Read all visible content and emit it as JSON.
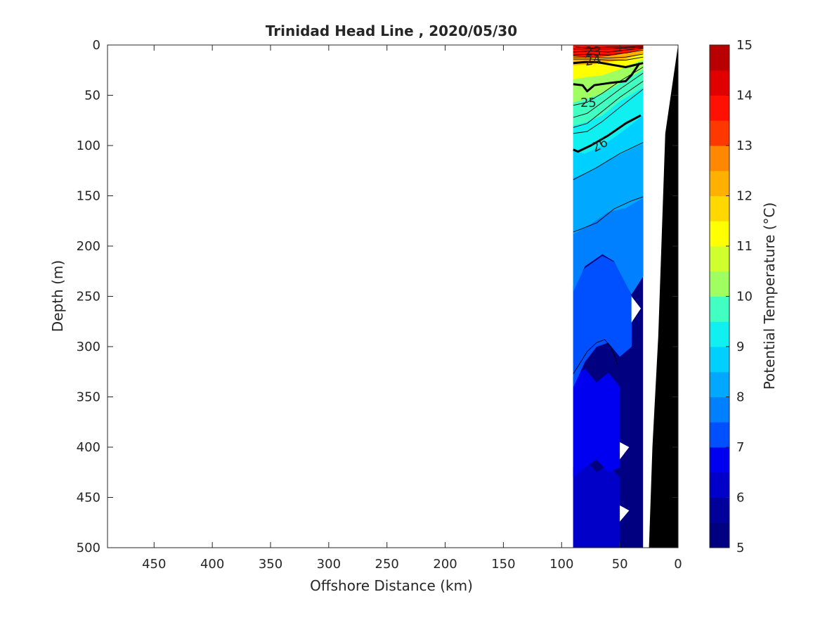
{
  "chart_data": {
    "type": "contour_section",
    "title": "Trinidad Head Line , 2020/05/30",
    "xlabel": "Offshore Distance (km)",
    "ylabel": "Depth (m)",
    "colorbar_label": "Potential Temperature (°C)",
    "xlim": [
      490,
      0
    ],
    "xdir": "reverse",
    "ylim": [
      500,
      0
    ],
    "ydir": "reverse",
    "xticks": [
      450,
      400,
      350,
      300,
      250,
      200,
      150,
      100,
      50,
      0
    ],
    "yticks": [
      0,
      50,
      100,
      150,
      200,
      250,
      300,
      350,
      400,
      450,
      500
    ],
    "colorbar_ticks": [
      5,
      6,
      7,
      8,
      9,
      10,
      11,
      12,
      13,
      14,
      15
    ],
    "colorbar_range": [
      5,
      15
    ],
    "colorbar_step": 0.5,
    "colormap": [
      "#000080",
      "#00009a",
      "#0000c8",
      "#0000f0",
      "#0020ff",
      "#0050ff",
      "#0080ff",
      "#00a8ff",
      "#00d0ff",
      "#10f0f0",
      "#40ffc0",
      "#70ff90",
      "#a0ff60",
      "#d0ff30",
      "#ffff00",
      "#ffd800",
      "#ffb000",
      "#ff8800",
      "#ff6000",
      "#ff3800",
      "#ff1000",
      "#e00000",
      "#b80000"
    ],
    "data_extent": {
      "x_min": 30,
      "x_max": 90,
      "depth_max": 500
    },
    "temperature_layers": [
      {
        "temp": 6.0,
        "outline": [
          [
            90,
            500
          ],
          [
            90,
            420
          ],
          [
            80,
            412
          ],
          [
            70,
            425
          ],
          [
            60,
            418
          ],
          [
            50,
            430
          ],
          [
            50,
            500
          ]
        ]
      },
      {
        "temp": 6.5,
        "outline": [
          [
            90,
            430
          ],
          [
            90,
            330
          ],
          [
            80,
            322
          ],
          [
            70,
            336
          ],
          [
            60,
            326
          ],
          [
            50,
            340
          ],
          [
            50,
            420
          ],
          [
            60,
            425
          ],
          [
            70,
            412
          ],
          [
            80,
            420
          ]
        ]
      },
      {
        "temp": 7.0,
        "outline": [
          [
            90,
            340
          ],
          [
            90,
            240
          ],
          [
            80,
            222
          ],
          [
            65,
            210
          ],
          [
            55,
            216
          ],
          [
            45,
            235
          ],
          [
            40,
            250
          ],
          [
            40,
            300
          ],
          [
            50,
            310
          ],
          [
            60,
            296
          ],
          [
            70,
            300
          ],
          [
            80,
            315
          ]
        ]
      },
      {
        "temp": 7.5,
        "outline": [
          [
            90,
            245
          ],
          [
            90,
            185
          ],
          [
            75,
            175
          ],
          [
            60,
            163
          ],
          [
            45,
            160
          ],
          [
            30,
            150
          ],
          [
            30,
            230
          ],
          [
            40,
            248
          ],
          [
            55,
            215
          ],
          [
            65,
            208
          ],
          [
            80,
            220
          ]
        ]
      },
      {
        "temp": 8.0,
        "outline": [
          [
            90,
            188
          ],
          [
            90,
            130
          ],
          [
            75,
            123
          ],
          [
            60,
            112
          ],
          [
            45,
            104
          ],
          [
            30,
            96
          ],
          [
            30,
            152
          ],
          [
            45,
            162
          ],
          [
            60,
            166
          ],
          [
            75,
            178
          ]
        ]
      },
      {
        "temp": 8.5,
        "outline": [
          [
            90,
            132
          ],
          [
            90,
            103
          ],
          [
            80,
            106
          ],
          [
            65,
            98
          ],
          [
            50,
            86
          ],
          [
            30,
            68
          ],
          [
            30,
            98
          ],
          [
            45,
            106
          ],
          [
            60,
            114
          ],
          [
            75,
            125
          ]
        ]
      },
      {
        "temp": 9.0,
        "outline": [
          [
            90,
            105
          ],
          [
            90,
            78
          ],
          [
            80,
            75
          ],
          [
            65,
            68
          ],
          [
            50,
            54
          ],
          [
            30,
            40
          ],
          [
            30,
            70
          ],
          [
            50,
            88
          ],
          [
            65,
            100
          ],
          [
            80,
            108
          ]
        ]
      },
      {
        "temp": 9.5,
        "outline": [
          [
            90,
            80
          ],
          [
            90,
            55
          ],
          [
            80,
            52
          ],
          [
            65,
            46
          ],
          [
            50,
            36
          ],
          [
            30,
            22
          ],
          [
            30,
            42
          ],
          [
            50,
            56
          ],
          [
            65,
            70
          ],
          [
            80,
            77
          ]
        ]
      },
      {
        "temp": 10.0,
        "outline": [
          [
            90,
            57
          ],
          [
            90,
            32
          ],
          [
            80,
            30
          ],
          [
            65,
            28
          ],
          [
            50,
            22
          ],
          [
            30,
            12
          ],
          [
            30,
            24
          ],
          [
            50,
            38
          ],
          [
            65,
            48
          ],
          [
            80,
            54
          ]
        ]
      },
      {
        "temp": 11.0,
        "outline": [
          [
            90,
            34
          ],
          [
            90,
            18
          ],
          [
            75,
            17
          ],
          [
            60,
            15
          ],
          [
            45,
            12
          ],
          [
            30,
            6
          ],
          [
            30,
            14
          ],
          [
            50,
            24
          ],
          [
            65,
            30
          ],
          [
            80,
            32
          ]
        ]
      },
      {
        "temp": 12.0,
        "outline": [
          [
            90,
            20
          ],
          [
            90,
            9
          ],
          [
            75,
            10
          ],
          [
            60,
            9
          ],
          [
            45,
            6
          ],
          [
            30,
            2
          ],
          [
            30,
            8
          ],
          [
            45,
            14
          ],
          [
            60,
            17
          ],
          [
            75,
            19
          ]
        ]
      },
      {
        "temp": 13.5,
        "outline": [
          [
            90,
            11
          ],
          [
            90,
            0
          ],
          [
            30,
            0
          ],
          [
            30,
            4
          ],
          [
            45,
            8
          ],
          [
            60,
            11
          ],
          [
            75,
            12
          ]
        ]
      }
    ],
    "white_notches": [
      {
        "outline": [
          [
            40,
            250
          ],
          [
            32,
            262
          ],
          [
            40,
            276
          ]
        ]
      },
      {
        "outline": [
          [
            50,
            395
          ],
          [
            42,
            400
          ],
          [
            50,
            412
          ]
        ]
      },
      {
        "outline": [
          [
            50,
            458
          ],
          [
            42,
            463
          ],
          [
            50,
            474
          ]
        ]
      }
    ],
    "density_contours": [
      {
        "label": "23",
        "points": [
          [
            88,
            2
          ],
          [
            75,
            3
          ],
          [
            60,
            2
          ],
          [
            45,
            2
          ],
          [
            30,
            1
          ]
        ],
        "bold": false
      },
      {
        "label": "24",
        "points": [
          [
            90,
            18
          ],
          [
            80,
            17
          ],
          [
            70,
            17
          ],
          [
            60,
            19
          ],
          [
            45,
            22
          ],
          [
            30,
            18
          ]
        ],
        "bold": true
      },
      {
        "label": "25",
        "points": [
          [
            90,
            39
          ],
          [
            82,
            40
          ],
          [
            78,
            46
          ],
          [
            72,
            40
          ],
          [
            60,
            38
          ],
          [
            45,
            36
          ],
          [
            40,
            30
          ],
          [
            33,
            18
          ]
        ],
        "bold": true
      },
      {
        "label": "26",
        "points": [
          [
            90,
            104
          ],
          [
            86,
            106
          ],
          [
            75,
            100
          ],
          [
            60,
            90
          ],
          [
            45,
            78
          ],
          [
            32,
            70
          ]
        ],
        "bold": true
      },
      {
        "label": "",
        "points": [
          [
            90,
            327
          ],
          [
            78,
            305
          ],
          [
            70,
            296
          ],
          [
            63,
            293
          ],
          [
            58,
            300
          ],
          [
            55,
            308
          ],
          [
            52,
            318
          ]
        ],
        "bold": false
      },
      {
        "label": "",
        "points": [
          [
            90,
            186
          ],
          [
            70,
            177
          ],
          [
            55,
            163
          ],
          [
            40,
            155
          ],
          [
            30,
            151
          ]
        ],
        "bold": false
      },
      {
        "label": "",
        "points": [
          [
            90,
            134
          ],
          [
            70,
            122
          ],
          [
            50,
            108
          ],
          [
            30,
            97
          ]
        ],
        "bold": false
      },
      {
        "label": "",
        "points": [
          [
            90,
            88
          ],
          [
            78,
            86
          ],
          [
            65,
            76
          ],
          [
            50,
            62
          ],
          [
            30,
            44
          ]
        ],
        "bold": false
      },
      {
        "label": "",
        "points": [
          [
            90,
            82
          ],
          [
            78,
            78
          ],
          [
            65,
            66
          ],
          [
            50,
            52
          ],
          [
            30,
            36
          ]
        ],
        "bold": false
      },
      {
        "label": "",
        "points": [
          [
            90,
            72
          ],
          [
            78,
            68
          ],
          [
            65,
            57
          ],
          [
            50,
            44
          ],
          [
            30,
            28
          ]
        ],
        "bold": false
      },
      {
        "label": "",
        "points": [
          [
            90,
            60
          ],
          [
            78,
            57
          ],
          [
            65,
            48
          ],
          [
            50,
            36
          ],
          [
            30,
            22
          ]
        ],
        "bold": false
      },
      {
        "label": "",
        "points": [
          [
            90,
            10
          ],
          [
            75,
            9
          ],
          [
            60,
            10
          ],
          [
            45,
            8
          ],
          [
            30,
            5
          ]
        ],
        "bold": false
      },
      {
        "label": "",
        "points": [
          [
            90,
            12
          ],
          [
            75,
            12
          ],
          [
            60,
            13
          ],
          [
            45,
            12
          ],
          [
            30,
            9
          ]
        ],
        "bold": false
      },
      {
        "label": "",
        "points": [
          [
            90,
            14
          ],
          [
            75,
            14
          ],
          [
            60,
            15
          ],
          [
            45,
            15
          ],
          [
            30,
            12
          ]
        ],
        "bold": false
      },
      {
        "label": "",
        "points": [
          [
            90,
            7
          ],
          [
            75,
            6
          ],
          [
            60,
            7
          ],
          [
            45,
            5
          ],
          [
            30,
            3
          ]
        ],
        "bold": false
      },
      {
        "label": "",
        "points": [
          [
            90,
            4
          ],
          [
            75,
            4
          ],
          [
            60,
            4
          ],
          [
            45,
            3
          ],
          [
            30,
            2
          ]
        ],
        "bold": false
      }
    ],
    "bathymetry": {
      "color": "#000000",
      "seafloor": [
        [
          0,
          0
        ],
        [
          11,
          88
        ],
        [
          17,
          290
        ],
        [
          22,
          400
        ],
        [
          25,
          500
        ]
      ]
    }
  }
}
